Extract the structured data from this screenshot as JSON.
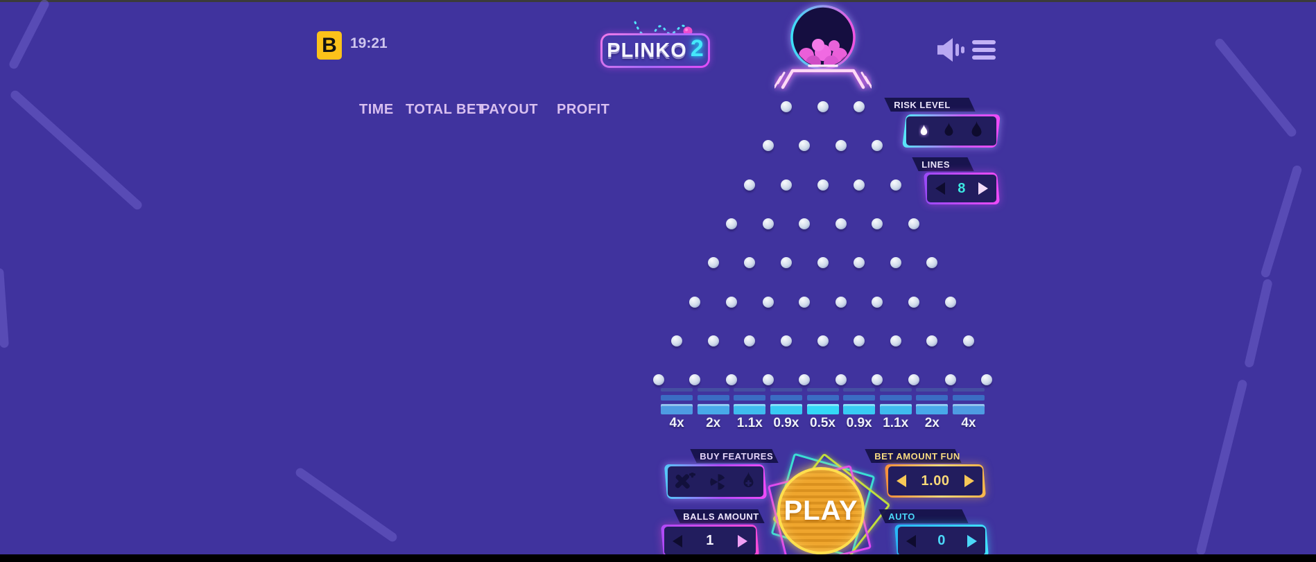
{
  "topbar": {
    "brand_letter": "B",
    "time": "19:21",
    "logo": {
      "text": "PLINKO",
      "number": "2"
    }
  },
  "history": {
    "columns": [
      "TIME",
      "TOTAL BET",
      "PAYOUT",
      "PROFIT"
    ]
  },
  "controls": {
    "risk_level": {
      "label": "RISK LEVEL",
      "options": [
        "low",
        "medium",
        "high"
      ],
      "selected_index": 0
    },
    "lines": {
      "label": "LINES",
      "value": "8"
    },
    "buy_features": {
      "label": "BUY FEATURES",
      "features": [
        "multiplier-plus",
        "cyclone",
        "flame-plus"
      ]
    },
    "play": {
      "label": "PLAY"
    },
    "bet_amount": {
      "label": "BET AMOUNT FUN",
      "value": "1.00"
    },
    "balls_amount": {
      "label": "BALLS AMOUNT",
      "value": "1"
    },
    "auto": {
      "label": "AUTO",
      "value": "0"
    }
  },
  "board": {
    "rows": 8,
    "top_row_pegs": 3,
    "slots": [
      {
        "label": "4x",
        "color": "#4e9be2"
      },
      {
        "label": "2x",
        "color": "#48a9e9"
      },
      {
        "label": "1.1x",
        "color": "#3fbbee"
      },
      {
        "label": "0.9x",
        "color": "#38cbf3"
      },
      {
        "label": "0.5x",
        "color": "#33d8f7"
      },
      {
        "label": "0.9x",
        "color": "#38cbf3"
      },
      {
        "label": "1.1x",
        "color": "#3fbbee"
      },
      {
        "label": "2x",
        "color": "#48a9e9"
      },
      {
        "label": "4x",
        "color": "#4e9be2"
      }
    ]
  },
  "colors": {
    "background": "#40339e",
    "accent_cyan": "#4ae0f8",
    "accent_magenta": "#e84af8",
    "accent_gold": "#f8c34a",
    "brand_yellow": "#fcc21a"
  }
}
